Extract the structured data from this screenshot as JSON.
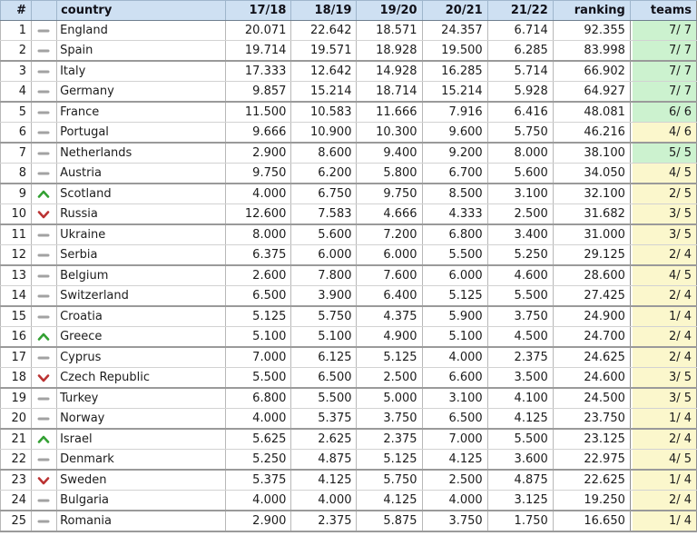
{
  "table": {
    "columns": [
      {
        "label": "#"
      },
      {
        "label": ""
      },
      {
        "label": "country"
      },
      {
        "label": "17/18"
      },
      {
        "label": "18/19"
      },
      {
        "label": "19/20"
      },
      {
        "label": "20/21"
      },
      {
        "label": "21/22"
      },
      {
        "label": "ranking"
      },
      {
        "label": "teams"
      }
    ],
    "rows": [
      {
        "rank": "1",
        "trend": "same",
        "country": "England",
        "seasons": [
          "20.071",
          "22.642",
          "18.571",
          "24.357",
          "6.714"
        ],
        "ranking": "92.355",
        "teams": "7/ 7",
        "teams_color": "green"
      },
      {
        "rank": "2",
        "trend": "same",
        "country": "Spain",
        "seasons": [
          "19.714",
          "19.571",
          "18.928",
          "19.500",
          "6.285"
        ],
        "ranking": "83.998",
        "teams": "7/ 7",
        "teams_color": "green"
      },
      {
        "rank": "3",
        "trend": "same",
        "country": "Italy",
        "seasons": [
          "17.333",
          "12.642",
          "14.928",
          "16.285",
          "5.714"
        ],
        "ranking": "66.902",
        "teams": "7/ 7",
        "teams_color": "green"
      },
      {
        "rank": "4",
        "trend": "same",
        "country": "Germany",
        "seasons": [
          "9.857",
          "15.214",
          "18.714",
          "15.214",
          "5.928"
        ],
        "ranking": "64.927",
        "teams": "7/ 7",
        "teams_color": "green"
      },
      {
        "rank": "5",
        "trend": "same",
        "country": "France",
        "seasons": [
          "11.500",
          "10.583",
          "11.666",
          "7.916",
          "6.416"
        ],
        "ranking": "48.081",
        "teams": "6/ 6",
        "teams_color": "green"
      },
      {
        "rank": "6",
        "trend": "same",
        "country": "Portugal",
        "seasons": [
          "9.666",
          "10.900",
          "10.300",
          "9.600",
          "5.750"
        ],
        "ranking": "46.216",
        "teams": "4/ 6",
        "teams_color": "yellow"
      },
      {
        "rank": "7",
        "trend": "same",
        "country": "Netherlands",
        "seasons": [
          "2.900",
          "8.600",
          "9.400",
          "9.200",
          "8.000"
        ],
        "ranking": "38.100",
        "teams": "5/ 5",
        "teams_color": "green"
      },
      {
        "rank": "8",
        "trend": "same",
        "country": "Austria",
        "seasons": [
          "9.750",
          "6.200",
          "5.800",
          "6.700",
          "5.600"
        ],
        "ranking": "34.050",
        "teams": "4/ 5",
        "teams_color": "yellow"
      },
      {
        "rank": "9",
        "trend": "up",
        "country": "Scotland",
        "seasons": [
          "4.000",
          "6.750",
          "9.750",
          "8.500",
          "3.100"
        ],
        "ranking": "32.100",
        "teams": "2/ 5",
        "teams_color": "yellow"
      },
      {
        "rank": "10",
        "trend": "down",
        "country": "Russia",
        "seasons": [
          "12.600",
          "7.583",
          "4.666",
          "4.333",
          "2.500"
        ],
        "ranking": "31.682",
        "teams": "3/ 5",
        "teams_color": "yellow"
      },
      {
        "rank": "11",
        "trend": "same",
        "country": "Ukraine",
        "seasons": [
          "8.000",
          "5.600",
          "7.200",
          "6.800",
          "3.400"
        ],
        "ranking": "31.000",
        "teams": "3/ 5",
        "teams_color": "yellow"
      },
      {
        "rank": "12",
        "trend": "same",
        "country": "Serbia",
        "seasons": [
          "6.375",
          "6.000",
          "6.000",
          "5.500",
          "5.250"
        ],
        "ranking": "29.125",
        "teams": "2/ 4",
        "teams_color": "yellow"
      },
      {
        "rank": "13",
        "trend": "same",
        "country": "Belgium",
        "seasons": [
          "2.600",
          "7.800",
          "7.600",
          "6.000",
          "4.600"
        ],
        "ranking": "28.600",
        "teams": "4/ 5",
        "teams_color": "yellow"
      },
      {
        "rank": "14",
        "trend": "same",
        "country": "Switzerland",
        "seasons": [
          "6.500",
          "3.900",
          "6.400",
          "5.125",
          "5.500"
        ],
        "ranking": "27.425",
        "teams": "2/ 4",
        "teams_color": "yellow"
      },
      {
        "rank": "15",
        "trend": "same",
        "country": "Croatia",
        "seasons": [
          "5.125",
          "5.750",
          "4.375",
          "5.900",
          "3.750"
        ],
        "ranking": "24.900",
        "teams": "1/ 4",
        "teams_color": "yellow"
      },
      {
        "rank": "16",
        "trend": "up",
        "country": "Greece",
        "seasons": [
          "5.100",
          "5.100",
          "4.900",
          "5.100",
          "4.500"
        ],
        "ranking": "24.700",
        "teams": "2/ 4",
        "teams_color": "yellow"
      },
      {
        "rank": "17",
        "trend": "same",
        "country": "Cyprus",
        "seasons": [
          "7.000",
          "6.125",
          "5.125",
          "4.000",
          "2.375"
        ],
        "ranking": "24.625",
        "teams": "2/ 4",
        "teams_color": "yellow"
      },
      {
        "rank": "18",
        "trend": "down",
        "country": "Czech Republic",
        "seasons": [
          "5.500",
          "6.500",
          "2.500",
          "6.600",
          "3.500"
        ],
        "ranking": "24.600",
        "teams": "3/ 5",
        "teams_color": "yellow"
      },
      {
        "rank": "19",
        "trend": "same",
        "country": "Turkey",
        "seasons": [
          "6.800",
          "5.500",
          "5.000",
          "3.100",
          "4.100"
        ],
        "ranking": "24.500",
        "teams": "3/ 5",
        "teams_color": "yellow"
      },
      {
        "rank": "20",
        "trend": "same",
        "country": "Norway",
        "seasons": [
          "4.000",
          "5.375",
          "3.750",
          "6.500",
          "4.125"
        ],
        "ranking": "23.750",
        "teams": "1/ 4",
        "teams_color": "yellow"
      },
      {
        "rank": "21",
        "trend": "up",
        "country": "Israel",
        "seasons": [
          "5.625",
          "2.625",
          "2.375",
          "7.000",
          "5.500"
        ],
        "ranking": "23.125",
        "teams": "2/ 4",
        "teams_color": "yellow"
      },
      {
        "rank": "22",
        "trend": "same",
        "country": "Denmark",
        "seasons": [
          "5.250",
          "4.875",
          "5.125",
          "4.125",
          "3.600"
        ],
        "ranking": "22.975",
        "teams": "4/ 5",
        "teams_color": "yellow"
      },
      {
        "rank": "23",
        "trend": "down",
        "country": "Sweden",
        "seasons": [
          "5.375",
          "4.125",
          "5.750",
          "2.500",
          "4.875"
        ],
        "ranking": "22.625",
        "teams": "1/ 4",
        "teams_color": "yellow"
      },
      {
        "rank": "24",
        "trend": "same",
        "country": "Bulgaria",
        "seasons": [
          "4.000",
          "4.000",
          "4.125",
          "4.000",
          "3.125"
        ],
        "ranking": "19.250",
        "teams": "2/ 4",
        "teams_color": "yellow"
      },
      {
        "rank": "25",
        "trend": "same",
        "country": "Romania",
        "seasons": [
          "2.900",
          "2.375",
          "5.875",
          "3.750",
          "1.750"
        ],
        "ranking": "16.650",
        "teams": "1/ 4",
        "teams_color": "yellow"
      }
    ]
  },
  "colors": {
    "header_bg": "#cee0f2",
    "teams_green": "#ccf2cf",
    "teams_yellow": "#fbf7cc",
    "trend_up": "#33a033",
    "trend_down": "#bb3333",
    "trend_same": "#a2a2a2"
  },
  "icons": {
    "up": "trend-up-icon",
    "down": "trend-down-icon",
    "same": "trend-same-icon"
  }
}
